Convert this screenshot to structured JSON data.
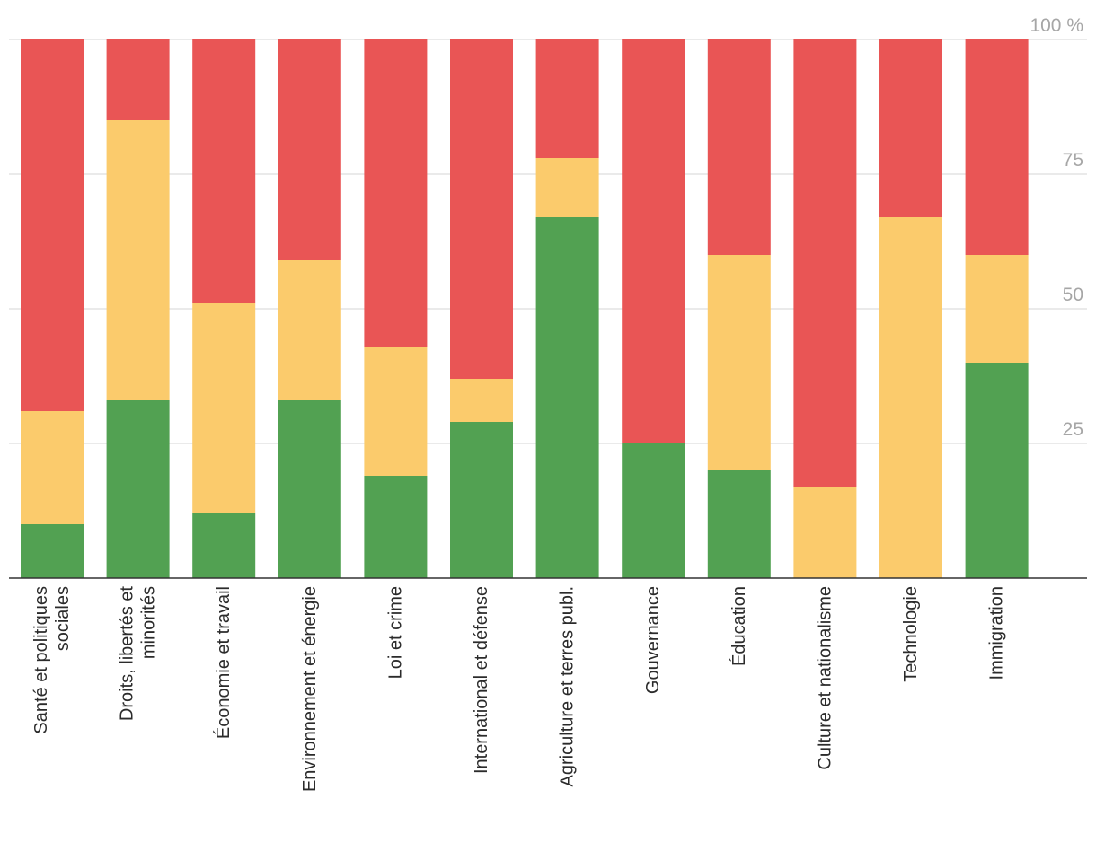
{
  "chart_data": {
    "type": "bar",
    "stacked": true,
    "orientation": "vertical",
    "categories": [
      [
        "Santé et politiques",
        "sociales"
      ],
      [
        "Droits, libertés et",
        "minorités"
      ],
      [
        "Économie et travail"
      ],
      [
        "Environnement et énergie"
      ],
      [
        "Loi et crime"
      ],
      [
        "International et défense"
      ],
      [
        "Agriculture et terres publ."
      ],
      [
        "Gouvernance"
      ],
      [
        "Éducation"
      ],
      [
        "Culture et nationalisme"
      ],
      [
        "Technologie"
      ],
      [
        "Immigration"
      ]
    ],
    "series": [
      {
        "color": "#52a152",
        "values": [
          10,
          33,
          12,
          33,
          19,
          29,
          67,
          25,
          20,
          0,
          0,
          40
        ]
      },
      {
        "color": "#fbcb6c",
        "values": [
          21,
          52,
          39,
          26,
          24,
          8,
          11,
          0,
          40,
          17,
          67,
          20
        ]
      },
      {
        "color": "#e95555",
        "values": [
          69,
          15,
          49,
          41,
          57,
          63,
          22,
          75,
          40,
          83,
          33,
          40
        ]
      }
    ],
    "yticks": [
      {
        "value": 25,
        "label": "25"
      },
      {
        "value": 50,
        "label": "50"
      },
      {
        "value": 75,
        "label": "75"
      },
      {
        "value": 100,
        "label": "100 %"
      }
    ],
    "ylim": [
      0,
      100
    ],
    "grid": true,
    "yaxis_side": "right",
    "title": "",
    "xlabel": "",
    "ylabel": ""
  }
}
